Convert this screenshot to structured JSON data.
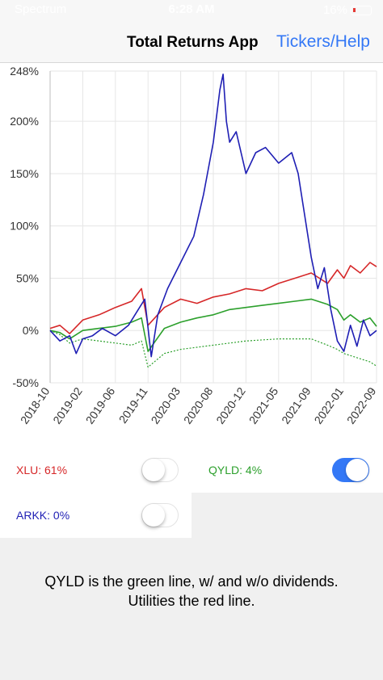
{
  "status_bar": {
    "carrier": "Spectrum",
    "time": "6:28 AM",
    "battery": "16%"
  },
  "nav": {
    "title": "Total Returns App",
    "link": "Tickers/Help"
  },
  "chart_data": {
    "type": "line",
    "x_ticks": [
      "2018-10",
      "2019-02",
      "2019-06",
      "2019-11",
      "2020-03",
      "2020-08",
      "2020-12",
      "2021-05",
      "2021-09",
      "2022-01",
      "2022-09"
    ],
    "y_ticks": [
      "248%",
      "200%",
      "150%",
      "100%",
      "50%",
      "0%",
      "-50%"
    ],
    "ylim": [
      -50,
      248
    ],
    "series": [
      {
        "color": "#d62728",
        "x": [
          0,
          0.03,
          0.06,
          0.1,
          0.15,
          0.2,
          0.25,
          0.28,
          0.3,
          0.35,
          0.4,
          0.45,
          0.5,
          0.55,
          0.6,
          0.65,
          0.7,
          0.75,
          0.8,
          0.85,
          0.88,
          0.9,
          0.92,
          0.95,
          0.98,
          1.0
        ],
        "values": [
          2,
          5,
          -3,
          10,
          15,
          22,
          28,
          40,
          5,
          22,
          30,
          26,
          32,
          35,
          40,
          38,
          45,
          50,
          55,
          45,
          58,
          50,
          62,
          55,
          65,
          61
        ]
      },
      {
        "color": "#2ca02c",
        "x": [
          0,
          0.03,
          0.06,
          0.1,
          0.15,
          0.2,
          0.25,
          0.28,
          0.3,
          0.35,
          0.4,
          0.45,
          0.5,
          0.55,
          0.6,
          0.65,
          0.7,
          0.75,
          0.8,
          0.85,
          0.88,
          0.9,
          0.92,
          0.95,
          0.98,
          1.0
        ],
        "values": [
          0,
          -2,
          -8,
          0,
          2,
          4,
          8,
          12,
          -20,
          2,
          8,
          12,
          15,
          20,
          22,
          24,
          26,
          28,
          30,
          25,
          20,
          10,
          15,
          8,
          12,
          4
        ]
      },
      {
        "color": "#2ca02c",
        "style": "dotted",
        "x": [
          0,
          0.03,
          0.06,
          0.1,
          0.15,
          0.2,
          0.25,
          0.28,
          0.3,
          0.35,
          0.4,
          0.45,
          0.5,
          0.55,
          0.6,
          0.65,
          0.7,
          0.75,
          0.8,
          0.85,
          0.88,
          0.9,
          0.92,
          0.95,
          0.98,
          1.0
        ],
        "values": [
          0,
          -4,
          -12,
          -8,
          -10,
          -12,
          -14,
          -10,
          -35,
          -22,
          -18,
          -16,
          -14,
          -12,
          -10,
          -9,
          -8,
          -8,
          -8,
          -14,
          -18,
          -22,
          -24,
          -27,
          -30,
          -34
        ]
      },
      {
        "color": "#1f1fb4",
        "x": [
          0,
          0.03,
          0.06,
          0.08,
          0.1,
          0.13,
          0.16,
          0.2,
          0.24,
          0.27,
          0.29,
          0.31,
          0.33,
          0.36,
          0.4,
          0.44,
          0.47,
          0.5,
          0.52,
          0.53,
          0.54,
          0.55,
          0.57,
          0.6,
          0.63,
          0.66,
          0.7,
          0.74,
          0.76,
          0.78,
          0.8,
          0.82,
          0.84,
          0.86,
          0.88,
          0.9,
          0.92,
          0.94,
          0.96,
          0.98,
          1.0
        ],
        "values": [
          0,
          -10,
          -5,
          -22,
          -8,
          -5,
          2,
          -5,
          5,
          20,
          30,
          -25,
          15,
          40,
          65,
          90,
          130,
          180,
          230,
          245,
          200,
          180,
          190,
          150,
          170,
          175,
          160,
          170,
          150,
          110,
          70,
          40,
          60,
          20,
          -10,
          -20,
          5,
          -15,
          10,
          -5,
          0
        ]
      }
    ]
  },
  "toggles": [
    {
      "label": "XLU: 61%",
      "color": "#d62728",
      "on": false
    },
    {
      "label": "QYLD: 4%",
      "color": "#2ca02c",
      "on": true
    },
    {
      "label": "ARKK: 0%",
      "color": "#1f1fb4",
      "on": false
    }
  ],
  "caption": {
    "line1": "QYLD is the green line, w/ and w/o dividends.",
    "line2": "Utilities the red line."
  }
}
